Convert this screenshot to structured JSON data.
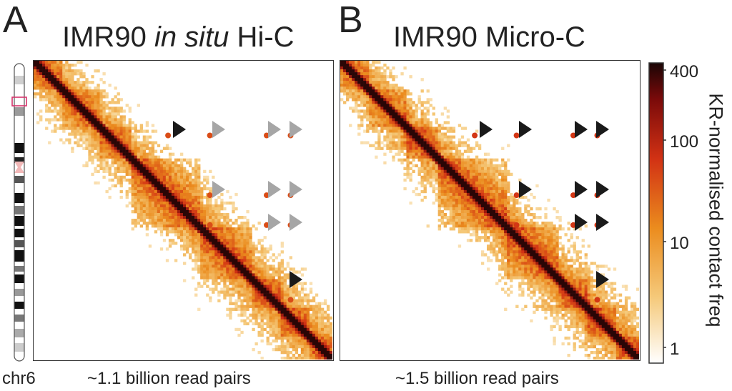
{
  "panels": [
    {
      "letter": "A",
      "title_pre": "IMR90 ",
      "title_italic": "in situ",
      "title_post": " Hi-C",
      "read_pairs": "~1.1 billion read pairs"
    },
    {
      "letter": "B",
      "title_pre": "IMR90 Micro-C",
      "title_italic": "",
      "title_post": "",
      "read_pairs": "~1.5 billion read pairs"
    }
  ],
  "chromosome": {
    "label": "chr6"
  },
  "colorbar": {
    "label": "KR-normalised contact freq",
    "ticks": [
      "400",
      "100",
      "10",
      "1"
    ],
    "colors": [
      "#ffffff",
      "#f5c97a",
      "#eb8c1e",
      "#d23214",
      "#7a0a0a",
      "#1a0505"
    ]
  },
  "arrow_colors": {
    "visible": "#1a1a1a",
    "faint": "#a6a6a6"
  },
  "chart_data": {
    "type": "heatmap",
    "color_scale": "log",
    "value_range": [
      1,
      400
    ],
    "panels": [
      {
        "panel": "A",
        "arrowheads": [
          {
            "row": 1,
            "col": 1,
            "visibility": "visible"
          },
          {
            "row": 1,
            "col": 2,
            "visibility": "faint"
          },
          {
            "row": 1,
            "col": 3,
            "visibility": "faint"
          },
          {
            "row": 1,
            "col": 4,
            "visibility": "faint"
          },
          {
            "row": 2,
            "col": 2,
            "visibility": "faint"
          },
          {
            "row": 2,
            "col": 3,
            "visibility": "faint"
          },
          {
            "row": 2,
            "col": 4,
            "visibility": "faint"
          },
          {
            "row": 3,
            "col": 3,
            "visibility": "faint"
          },
          {
            "row": 3,
            "col": 4,
            "visibility": "faint"
          },
          {
            "row": 4,
            "col": 4,
            "visibility": "visible"
          }
        ]
      },
      {
        "panel": "B",
        "arrowheads": [
          {
            "row": 1,
            "col": 1,
            "visibility": "visible"
          },
          {
            "row": 1,
            "col": 2,
            "visibility": "visible"
          },
          {
            "row": 1,
            "col": 3,
            "visibility": "visible"
          },
          {
            "row": 1,
            "col": 4,
            "visibility": "visible"
          },
          {
            "row": 2,
            "col": 2,
            "visibility": "visible"
          },
          {
            "row": 2,
            "col": 3,
            "visibility": "visible"
          },
          {
            "row": 2,
            "col": 4,
            "visibility": "visible"
          },
          {
            "row": 3,
            "col": 3,
            "visibility": "visible"
          },
          {
            "row": 3,
            "col": 4,
            "visibility": "visible"
          },
          {
            "row": 4,
            "col": 4,
            "visibility": "visible"
          }
        ]
      }
    ]
  }
}
